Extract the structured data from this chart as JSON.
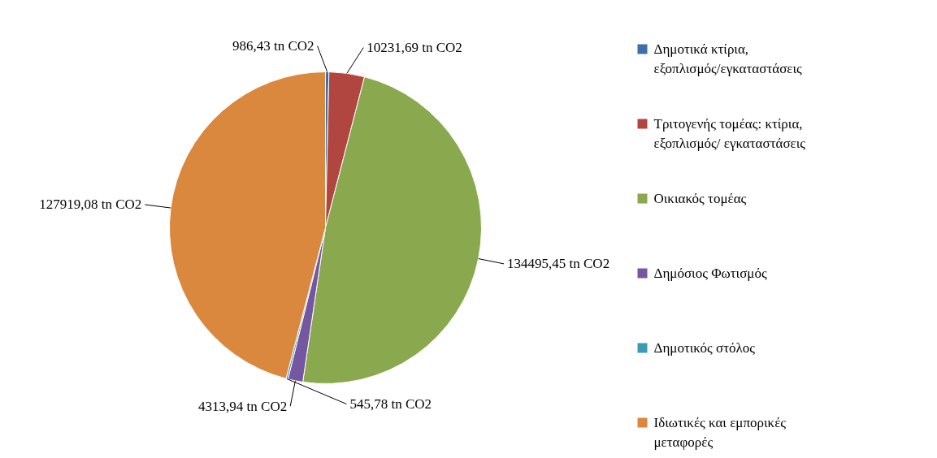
{
  "chart_data": {
    "type": "pie",
    "categories": [
      "Δημοτικά κτίρια, εξοπλισμός/εγκαταστάσεις",
      "Τριτογενής τομέας: κτίρια, εξοπλισμός/ εγκαταστάσεις",
      "Οικιακός τομέας",
      "Δημόσιος Φωτισμός",
      "Δημοτικός στόλος",
      "Ιδιωτικές και εμπορικές μεταφορές"
    ],
    "values": [
      986.43,
      10231.69,
      134495.45,
      4313.94,
      545.78,
      127919.08
    ],
    "value_labels": [
      "986,43 tn CO2",
      "10231,69 tn CO2",
      "134495,45 tn CO2",
      "4313,94 tn CO2",
      "545,78 tn CO2",
      "127919,08 tn CO2"
    ],
    "colors": [
      "#3f6fa8",
      "#b0463f",
      "#8aa84d",
      "#7457a0",
      "#3c9bb4",
      "#db883f"
    ],
    "legend": "right"
  }
}
